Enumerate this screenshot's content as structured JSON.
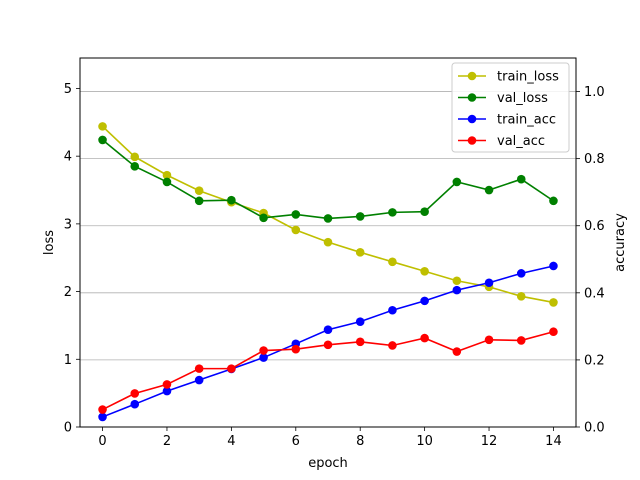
{
  "chart_data": {
    "type": "line",
    "xlabel": "epoch",
    "ylabel": "loss",
    "y2label": "accuracy",
    "xlim": [
      -0.7,
      14.7
    ],
    "ylim": [
      0,
      5.45
    ],
    "y2lim": [
      0,
      1.1
    ],
    "xticks": [
      0,
      2,
      4,
      6,
      8,
      10,
      12,
      14
    ],
    "yticks": [
      0,
      1,
      2,
      3,
      4,
      5
    ],
    "y2ticks": [
      0.0,
      0.2,
      0.4,
      0.6,
      0.8,
      1.0
    ],
    "y2tick_labels": [
      "0.0",
      "0.2",
      "0.4",
      "0.6",
      "0.8",
      "1.0"
    ],
    "grid": "horizontal lines at right-axis ticks",
    "legend": "upper right",
    "x": [
      0,
      1,
      2,
      3,
      4,
      5,
      6,
      7,
      8,
      9,
      10,
      11,
      12,
      13,
      14
    ],
    "series": [
      {
        "name": "train_loss",
        "axis": "left",
        "color": "#bfbf00",
        "values": [
          4.44,
          3.99,
          3.72,
          3.49,
          3.32,
          3.16,
          2.91,
          2.73,
          2.58,
          2.44,
          2.3,
          2.16,
          2.07,
          1.93,
          1.84
        ]
      },
      {
        "name": "val_loss",
        "axis": "left",
        "color": "#008000",
        "values": [
          4.24,
          3.85,
          3.62,
          3.34,
          3.35,
          3.09,
          3.14,
          3.08,
          3.11,
          3.17,
          3.18,
          3.62,
          3.5,
          3.66,
          3.34
        ]
      },
      {
        "name": "train_acc",
        "axis": "right",
        "color": "#0000ff",
        "values": [
          0.03,
          0.068,
          0.107,
          0.14,
          0.173,
          0.207,
          0.248,
          0.29,
          0.314,
          0.348,
          0.376,
          0.408,
          0.43,
          0.458,
          0.48
        ]
      },
      {
        "name": "val_acc",
        "axis": "right",
        "color": "#ff0000",
        "values": [
          0.052,
          0.1,
          0.127,
          0.174,
          0.174,
          0.228,
          0.232,
          0.245,
          0.254,
          0.243,
          0.265,
          0.225,
          0.26,
          0.258,
          0.284
        ]
      }
    ]
  }
}
